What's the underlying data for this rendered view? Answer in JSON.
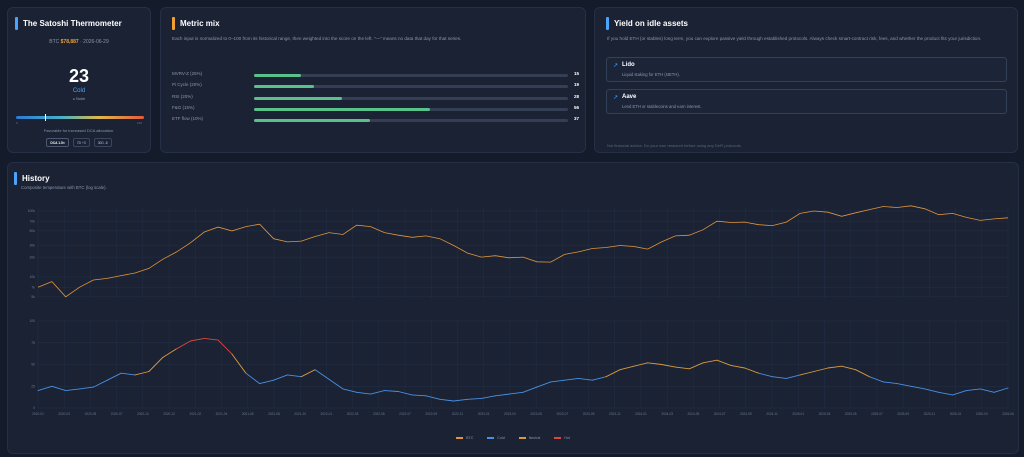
{
  "thermometer": {
    "title": "The Satoshi Thermometer",
    "price_prefix": "BTC",
    "price": "$78,887",
    "date": "2026-06-29",
    "score": "23",
    "label": "Cold",
    "sub": "● Stable",
    "score_fraction": 0.23,
    "gauge_min": "0",
    "gauge_max": "100",
    "description": "Favorable for increased DCA allocation.",
    "chips": [
      "DCA 1.5×",
      "7D +3",
      "30D -8"
    ],
    "accent": "#4aa3ff"
  },
  "metric_mix": {
    "title": "Metric mix",
    "description": "Each input is normalized to 0–100 from its historical range, then weighted into the score on the left. “—” means no data that day for that series.",
    "accent": "#f0a030",
    "rows": [
      {
        "name": "MVRV-Z (25%)",
        "value": 15
      },
      {
        "name": "Pi Cycle (20%)",
        "value": 19
      },
      {
        "name": "RSI (20%)",
        "value": 28
      },
      {
        "name": "F&G (15%)",
        "value": 56
      },
      {
        "name": "ETF flow (10%)",
        "value": 37
      }
    ]
  },
  "yield": {
    "title": "Yield on idle assets",
    "accent": "#4aa3ff",
    "description": "If you hold ETH (or stables) long term, you can explore passive yield through established protocols. Always check smart-contract risk, fees, and whether the product fits your jurisdiction.",
    "options": [
      {
        "name": "Lido",
        "desc": "Liquid staking for ETH (stETH).",
        "icon": "external-link-icon"
      },
      {
        "name": "Aave",
        "desc": "Lend ETH or stablecoins and earn interest.",
        "icon": "external-link-icon"
      }
    ],
    "footnote": "Not financial advice. Do your own research before using any DeFi protocols."
  },
  "history": {
    "title": "History",
    "subtitle": "Composite temperature with BTC (log scale).",
    "accent": "#4aa3ff"
  },
  "chart_data": {
    "type": "line",
    "price_yticks": [
      "100k",
      "70k",
      "50k",
      "30k",
      "20k",
      "10k",
      "7k",
      "5k"
    ],
    "temp_yticks": [
      "100",
      "75",
      "50",
      "25",
      "0"
    ],
    "x_ticks": [
      "2020-01",
      "2020-03",
      "2020-05",
      "2020-07",
      "2020-10",
      "2020-12",
      "2021-02",
      "2021-04",
      "2021-06",
      "2021-08",
      "2021-10",
      "2022-01",
      "2022-03",
      "2022-05",
      "2022-07",
      "2022-09",
      "2022-11",
      "2023-01",
      "2023-03",
      "2023-05",
      "2023-07",
      "2023-09",
      "2023-11",
      "2024-01",
      "2024-03",
      "2024-05",
      "2024-07",
      "2024-09",
      "2024-11",
      "2025-01",
      "2025-03",
      "2025-05",
      "2025-07",
      "2025-09",
      "2025-11",
      "2026-01",
      "2026-03",
      "2026-06"
    ],
    "btc_price": [
      7000,
      8500,
      5000,
      7000,
      9000,
      9500,
      10500,
      11500,
      13500,
      18500,
      24000,
      33000,
      48000,
      57000,
      50000,
      58000,
      63000,
      38000,
      34000,
      35000,
      41000,
      47000,
      44000,
      61000,
      58000,
      47000,
      43000,
      40000,
      42000,
      38000,
      30000,
      23000,
      20000,
      21000,
      19500,
      20000,
      17000,
      16800,
      22000,
      24000,
      27000,
      28000,
      30000,
      29000,
      26500,
      34000,
      42000,
      43000,
      52000,
      70000,
      67000,
      68000,
      62000,
      60000,
      68000,
      92000,
      100000,
      96000,
      83000,
      94000,
      105000,
      117000,
      113000,
      120000,
      108000,
      88000,
      92000,
      80000,
      72000,
      76000,
      79000
    ],
    "temperature": [
      20,
      25,
      20,
      22,
      24,
      32,
      40,
      38,
      42,
      58,
      68,
      77,
      80,
      78,
      62,
      40,
      28,
      32,
      38,
      36,
      44,
      33,
      22,
      18,
      16,
      20,
      19,
      15,
      14,
      10,
      8,
      10,
      11,
      14,
      16,
      18,
      24,
      30,
      32,
      34,
      32,
      36,
      44,
      48,
      52,
      50,
      47,
      45,
      52,
      55,
      49,
      46,
      40,
      36,
      34,
      38,
      42,
      46,
      48,
      44,
      36,
      30,
      28,
      25,
      22,
      18,
      15,
      20,
      22,
      18,
      23
    ],
    "series": [
      {
        "name": "BTC",
        "color": "#e0953d"
      },
      {
        "name": "Cold",
        "color": "#4a90e2"
      },
      {
        "name": "Neutral",
        "color": "#d99a3c"
      },
      {
        "name": "Hot",
        "color": "#d9473f"
      }
    ],
    "temp_ylim": [
      0,
      100
    ],
    "price_scale": "log",
    "grid": true,
    "legend_position": "bottom-center"
  }
}
